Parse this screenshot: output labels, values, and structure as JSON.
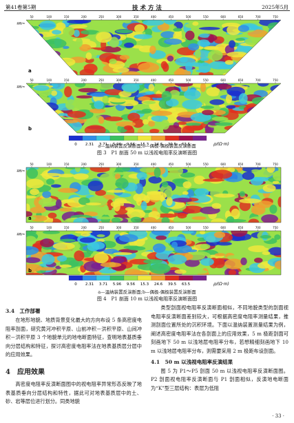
{
  "header": {
    "left": "第41卷第5期",
    "center": "技 术 方 法",
    "right": "2025年5月"
  },
  "figure3": {
    "axis_labels": [
      "50",
      "100",
      "150",
      "200",
      "250",
      "300",
      "350",
      "400",
      "450",
      "500",
      "550",
      "600",
      "650",
      "700",
      "750"
    ],
    "elevation_label": "高程/m",
    "panel_labels": [
      "a",
      "b"
    ],
    "colorbar": [
      "0",
      "2.31",
      "3.71",
      "5.96",
      "9.56",
      "15.3",
      "24.6",
      "39.5",
      "63.5"
    ],
    "colorbar_unit": "ρ/(Ω·m)",
    "subcaption": "a—温纳装置反演断面;b—偶极-偶极装置反演断面",
    "caption": "图 3　P1 剖面 50 m 以浅视电阻率反演断面图"
  },
  "figure4": {
    "axis_labels": [
      "50",
      "100",
      "150",
      "200",
      "250",
      "300",
      "350",
      "400",
      "450",
      "500",
      "550",
      "600",
      "650",
      "700",
      "750"
    ],
    "elevation_label": "高程/m",
    "panel_labels": [
      "a",
      "b"
    ],
    "colorbar": [
      "0",
      "2.31",
      "3.71",
      "5.96",
      "9.56",
      "15.3",
      "24.6",
      "39.5",
      "63.5"
    ],
    "colorbar_unit": "ρ/(Ω·m)",
    "subcaption": "a—温纳装置反演断面;b—偶极-偶极装置反演断面",
    "caption": "图 4　P1 剖面 10 m 以浅视电阻率反演断面图"
  },
  "left_column": {
    "heading1": "3.4　工作部署",
    "paragraph1": "在地形地貌、地质背景变化最大的方向布设 5 条高密度电阻率剖面，研究黄河冲积平原、山前冲积－洪积平原、山间冲积－洪积平原 3 个地貌单元的地电断面特征，查明地表基质垂向分层结构和特征，探讨高密度电阻率法在地表基质层分层中的应用效果。",
    "heading2": "4　应用效果",
    "paragraph2": "高密度电阻率反演断面图中的视电阻率异常形态反映了地表基质垂向分层结构和特性，据此可对地表基质层中的土、砂、岩等层位进行划分。同类地貌"
  },
  "right_column": {
    "paragraph1": "类型剖面视电阻率反演断面相似，不同地貌类型的剖面视电阻率反演断面差别较大，可根据高密度电阻率测量结果，推测剖面位置所处的沉积环境。下面以温纳装置测量结果为例，阐述高密度电阻率法在各剖面上的应用效果，5 m 极距剖面可刻画地下 50 m 以浅地层电阻率分布，若想精细刻画地下 10 m 以浅地层电阻率分布，则需要采用 2 m 极距布设剖面。",
    "heading": "4.1　50 m 以浅视电阻率反演结果",
    "paragraph2": "图 5 为 P1～P5 剖面 50 m 以浅视电阻率反演断面图。P2 剖面视电阻率反演断面与 P1 剖面相似，反演地电断面为“K”型三层结构：表层为低阻"
  },
  "footer": "· 33 ·"
}
